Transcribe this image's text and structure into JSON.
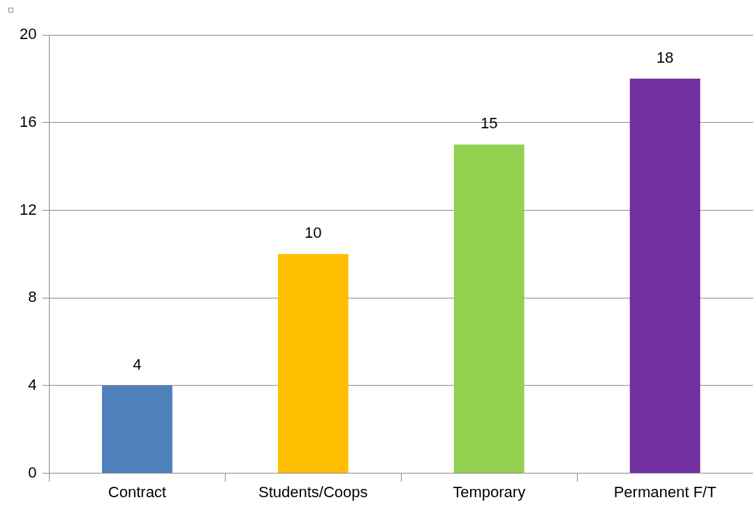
{
  "chart_data": {
    "type": "bar",
    "categories": [
      "Contract",
      "Students/Coops",
      "Temporary",
      "Permanent F/T"
    ],
    "values": [
      4,
      10,
      15,
      18
    ],
    "colors": [
      "#4f81bd",
      "#ffc000",
      "#92d050",
      "#7030a0"
    ],
    "ylim": [
      0,
      20
    ],
    "yticks": [
      0,
      4,
      8,
      12,
      16,
      20
    ],
    "grid": "y",
    "data_labels": true,
    "legend": false
  }
}
